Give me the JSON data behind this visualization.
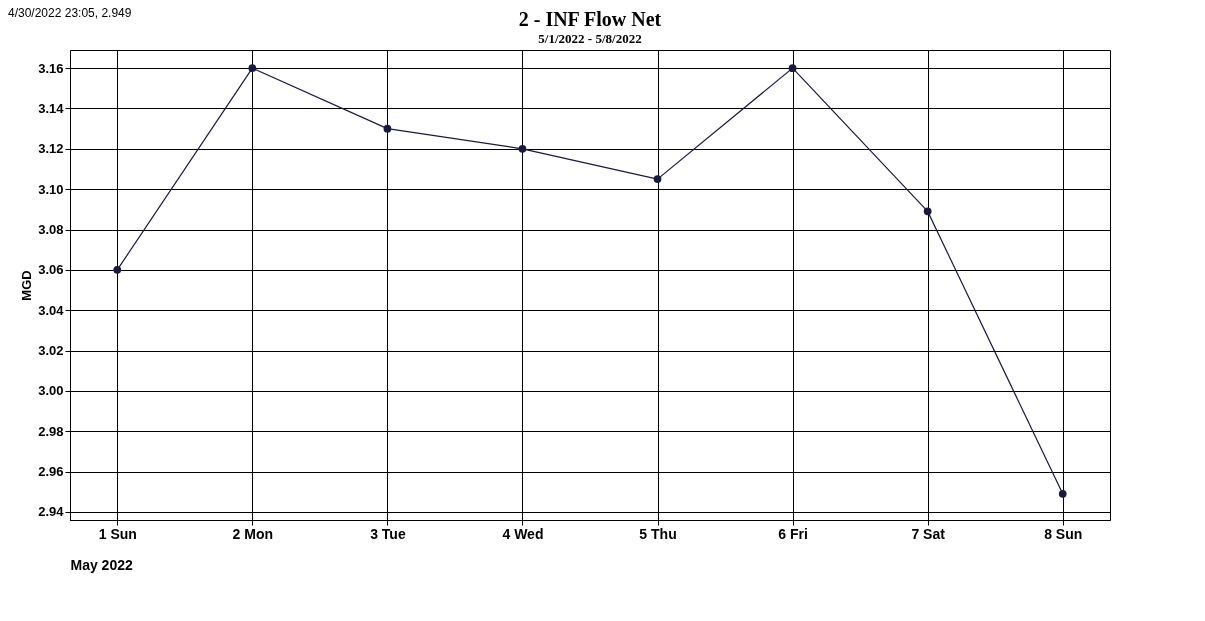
{
  "chart_data": {
    "type": "line",
    "title": "2 - INF Flow Net",
    "subtitle": "5/1/2022 - 5/8/2022",
    "xlabel": "May 2022",
    "ylabel": "MGD",
    "annotations": [
      "4/30/2022 23:05, 2.949"
    ],
    "x": [
      1,
      2,
      3,
      4,
      5,
      6,
      7,
      8
    ],
    "series": [
      {
        "color": "#1a1a40",
        "values": [
          3.06,
          3.16,
          3.13,
          3.12,
          3.105,
          3.16,
          3.089,
          2.949
        ]
      }
    ],
    "xlim": [
      0.65,
      8.35
    ],
    "xticks": [
      {
        "value": 1,
        "label": "1 Sun"
      },
      {
        "value": 2,
        "label": "2 Mon"
      },
      {
        "value": 3,
        "label": "3 Tue"
      },
      {
        "value": 4,
        "label": "4 Wed"
      },
      {
        "value": 5,
        "label": "5 Thu"
      },
      {
        "value": 6,
        "label": "6 Fri"
      },
      {
        "value": 7,
        "label": "7 Sat"
      },
      {
        "value": 8,
        "label": "8 Sun"
      }
    ],
    "ylim": [
      2.936,
      3.169
    ],
    "yticks": [
      {
        "value": 2.94,
        "label": "2.94"
      },
      {
        "value": 2.96,
        "label": "2.96"
      },
      {
        "value": 2.98,
        "label": "2.98"
      },
      {
        "value": 3.0,
        "label": "3.00"
      },
      {
        "value": 3.02,
        "label": "3.02"
      },
      {
        "value": 3.04,
        "label": "3.04"
      },
      {
        "value": 3.06,
        "label": "3.06"
      },
      {
        "value": 3.08,
        "label": "3.08"
      },
      {
        "value": 3.1,
        "label": "3.10"
      },
      {
        "value": 3.12,
        "label": "3.12"
      },
      {
        "value": 3.14,
        "label": "3.14"
      },
      {
        "value": 3.16,
        "label": "3.16"
      }
    ],
    "grid": true,
    "marker": "circle",
    "line_style": "solid"
  }
}
